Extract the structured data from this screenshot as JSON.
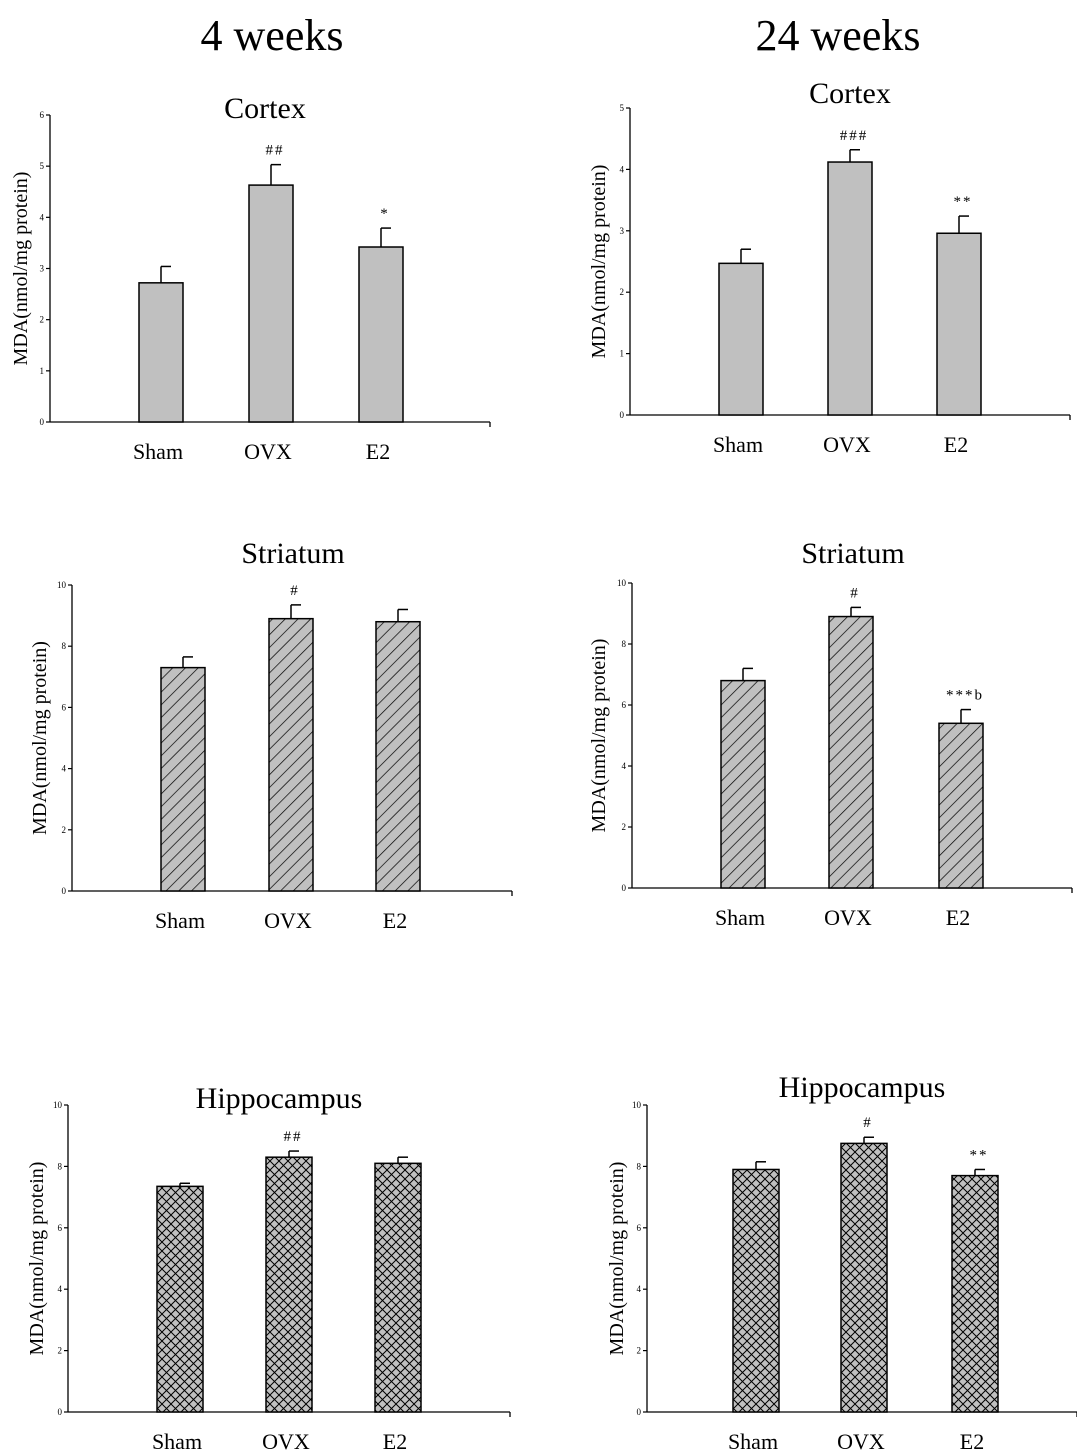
{
  "columns": [
    "4 weeks",
    "24 weeks"
  ],
  "colors": {
    "bar_fill": "#c0c0c0",
    "stroke": "#000000",
    "background": "#ffffff"
  },
  "chart_data": [
    {
      "id": "cortex-4w",
      "type": "bar",
      "title": "Cortex",
      "column": "4 weeks",
      "ylabel": "MDA(nmol/mg protein)",
      "xlabel": "",
      "categories": [
        "Sham",
        "OVX",
        "E2"
      ],
      "values": [
        2.72,
        4.63,
        3.42
      ],
      "errors": [
        0.32,
        0.4,
        0.37
      ],
      "annotations": [
        "",
        "##",
        "*"
      ],
      "ylim": [
        0,
        6
      ],
      "yticks": [
        0,
        1,
        2,
        3,
        4,
        5,
        6
      ],
      "pattern": "solid"
    },
    {
      "id": "cortex-24w",
      "type": "bar",
      "title": "Cortex",
      "column": "24 weeks",
      "ylabel": "MDA(nmol/mg protein)",
      "xlabel": "",
      "categories": [
        "Sham",
        "OVX",
        "E2"
      ],
      "values": [
        2.47,
        4.12,
        2.96
      ],
      "errors": [
        0.23,
        0.2,
        0.28
      ],
      "annotations": [
        "",
        "###",
        "**"
      ],
      "ylim": [
        0,
        5
      ],
      "yticks": [
        0,
        1,
        2,
        3,
        4,
        5
      ],
      "pattern": "solid"
    },
    {
      "id": "striatum-4w",
      "type": "bar",
      "title": "Striatum",
      "column": "4 weeks",
      "ylabel": "MDA(nmol/mg protein)",
      "xlabel": "",
      "categories": [
        "Sham",
        "OVX",
        "E2"
      ],
      "values": [
        7.3,
        8.9,
        8.8
      ],
      "errors": [
        0.35,
        0.45,
        0.4
      ],
      "annotations": [
        "",
        "#",
        ""
      ],
      "ylim": [
        0,
        10
      ],
      "yticks": [
        0,
        2,
        4,
        6,
        8,
        10
      ],
      "pattern": "diagonal"
    },
    {
      "id": "striatum-24w",
      "type": "bar",
      "title": "Striatum",
      "column": "24 weeks",
      "ylabel": "MDA(nmol/mg protein)",
      "xlabel": "",
      "categories": [
        "Sham",
        "OVX",
        "E2"
      ],
      "values": [
        6.8,
        8.9,
        5.4
      ],
      "errors": [
        0.4,
        0.3,
        0.45
      ],
      "annotations": [
        "",
        "#",
        "***b"
      ],
      "ylim": [
        0,
        10
      ],
      "yticks": [
        0,
        2,
        4,
        6,
        8,
        10
      ],
      "pattern": "diagonal"
    },
    {
      "id": "hippocampus-4w",
      "type": "bar",
      "title": "Hippocampus",
      "column": "4 weeks",
      "ylabel": "MDA(nmol/mg protein)",
      "xlabel": "",
      "categories": [
        "Sham",
        "OVX",
        "E2"
      ],
      "values": [
        7.35,
        8.3,
        8.1
      ],
      "errors": [
        0.1,
        0.2,
        0.2
      ],
      "annotations": [
        "",
        "##",
        ""
      ],
      "ylim": [
        0,
        10
      ],
      "yticks": [
        0,
        2,
        4,
        6,
        8,
        10
      ],
      "pattern": "crosshatch"
    },
    {
      "id": "hippocampus-24w",
      "type": "bar",
      "title": "Hippocampus",
      "column": "24 weeks",
      "ylabel": "MDA(nmol/mg protein)",
      "xlabel": "",
      "categories": [
        "Sham",
        "OVX",
        "E2"
      ],
      "values": [
        7.9,
        8.75,
        7.7
      ],
      "errors": [
        0.25,
        0.2,
        0.2
      ],
      "annotations": [
        "",
        "#",
        "**"
      ],
      "ylim": [
        0,
        10
      ],
      "yticks": [
        0,
        2,
        4,
        6,
        8,
        10
      ],
      "pattern": "crosshatch"
    }
  ]
}
